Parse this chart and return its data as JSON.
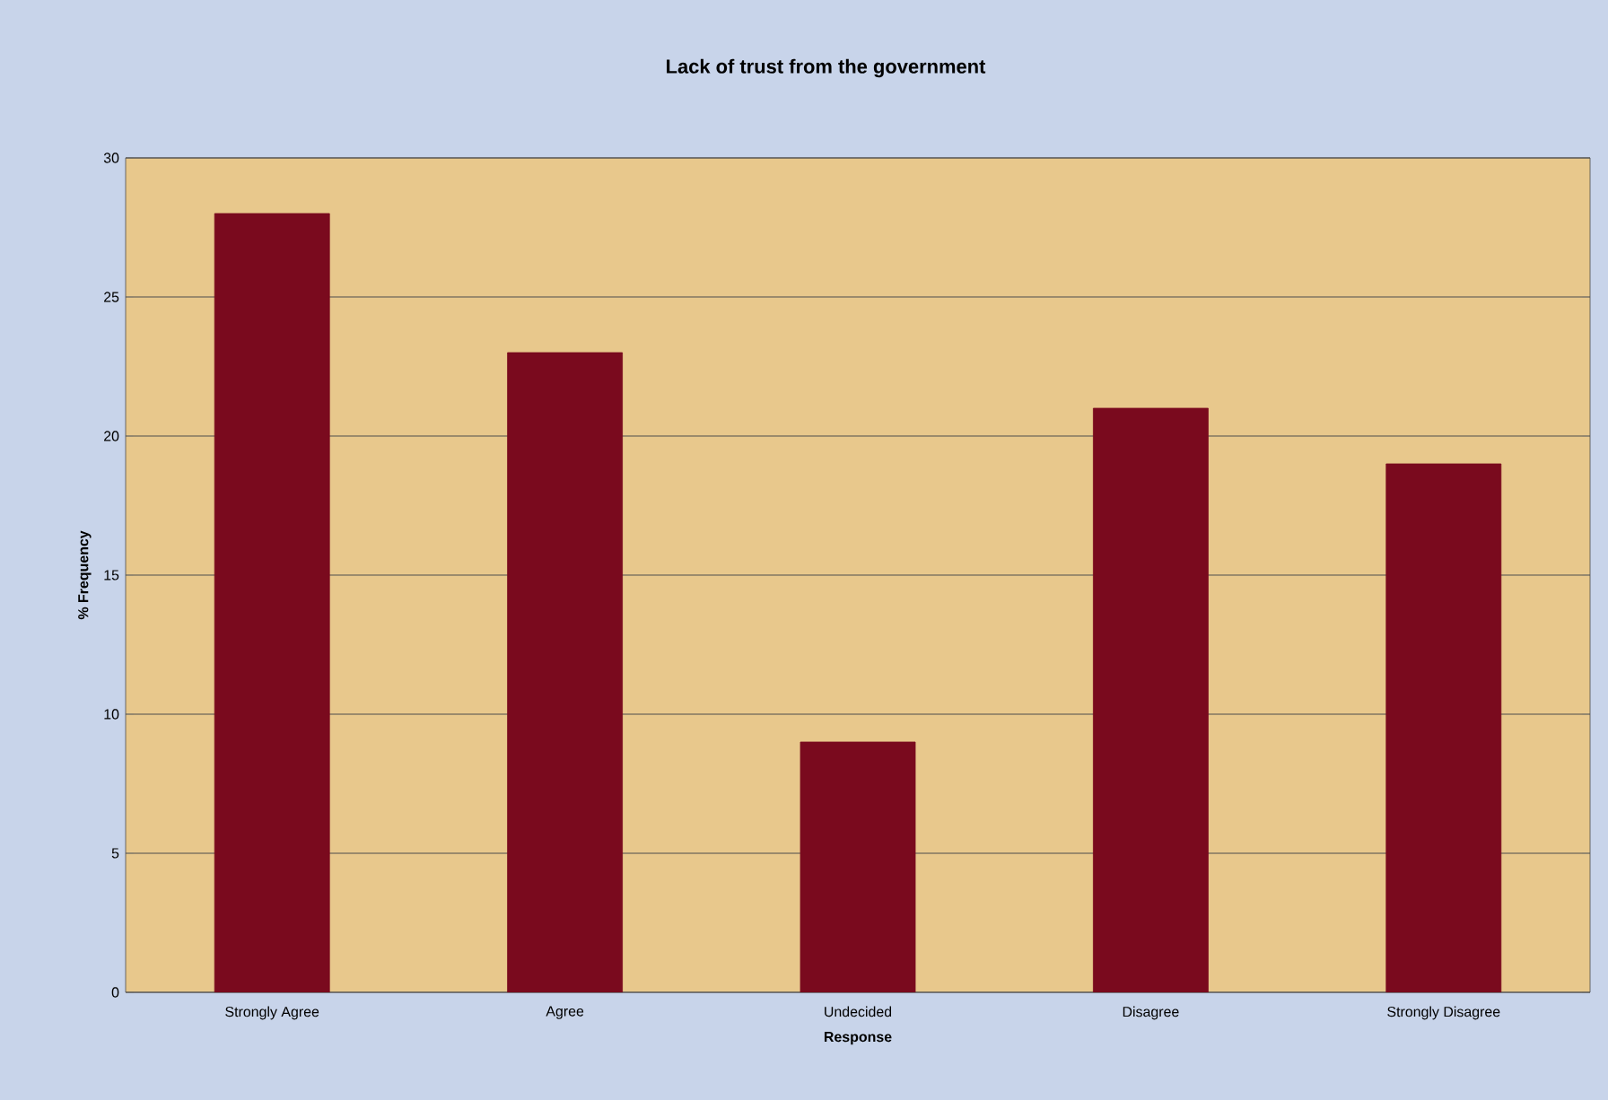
{
  "chart_data": {
    "type": "bar",
    "title": "Lack of trust from  the government",
    "xlabel": "Response",
    "ylabel": "% Frequency",
    "categories": [
      "Strongly Agree",
      "Agree",
      "Undecided",
      "Disagree",
      "Strongly Disagree"
    ],
    "values": [
      28,
      23,
      9,
      21,
      19
    ],
    "color": "#7a0a1e",
    "ylim": [
      0,
      30
    ],
    "yticks": [
      0,
      5,
      10,
      15,
      20,
      25,
      30
    ],
    "grid": "y"
  }
}
